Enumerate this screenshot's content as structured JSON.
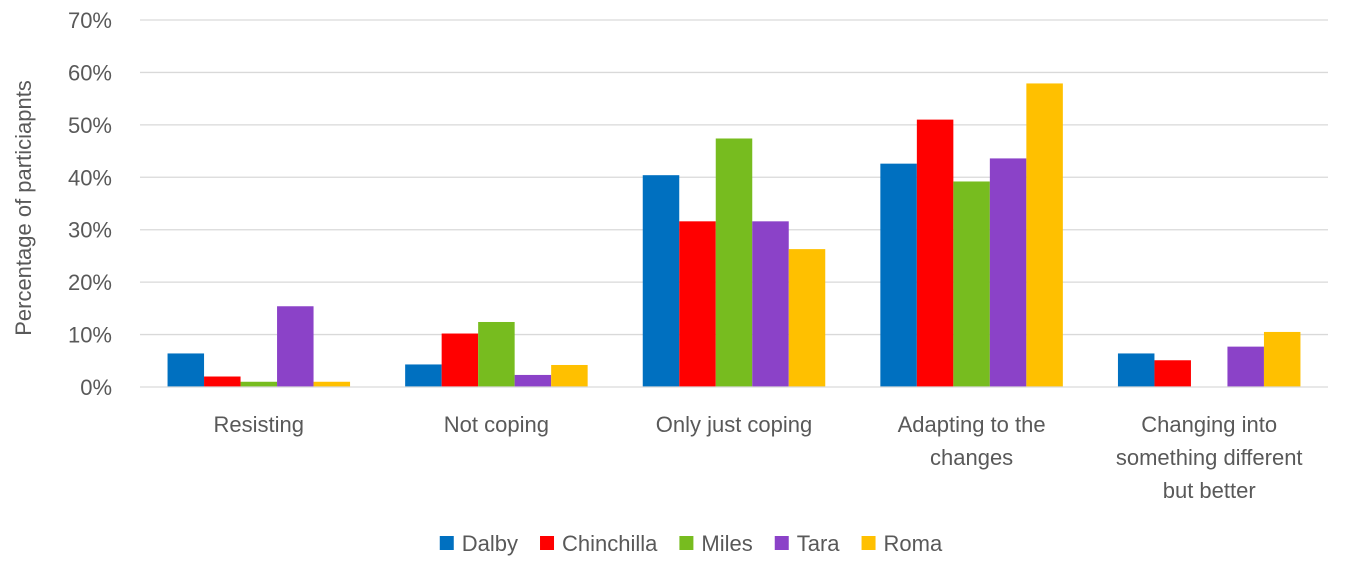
{
  "chart_data": {
    "type": "bar",
    "title": "",
    "xlabel": "",
    "ylabel": "Percentage of particiapnts",
    "ylim": [
      0,
      70
    ],
    "yticks": [
      0,
      10,
      20,
      30,
      40,
      50,
      60,
      70
    ],
    "ytick_labels": [
      "0%",
      "10%",
      "20%",
      "30%",
      "40%",
      "50%",
      "60%",
      "70%"
    ],
    "grid": true,
    "legend_position": "bottom",
    "categories": [
      "Resisting",
      "Not coping",
      "Only just coping",
      "Adapting to the changes",
      "Changing into something different but better"
    ],
    "category_label_lines": [
      [
        "Resisting"
      ],
      [
        "Not coping"
      ],
      [
        "Only just coping"
      ],
      [
        "Adapting to the",
        "changes"
      ],
      [
        "Changing into",
        "something different",
        "but better"
      ]
    ],
    "series": [
      {
        "name": "Dalby",
        "color": "#0070C0",
        "values": [
          6.4,
          4.3,
          40.4,
          42.6,
          6.4
        ]
      },
      {
        "name": "Chinchilla",
        "color": "#FF0000",
        "values": [
          2.0,
          10.2,
          31.6,
          51.0,
          5.1
        ]
      },
      {
        "name": "Miles",
        "color": "#77BC1F",
        "values": [
          1.0,
          12.4,
          47.4,
          39.2,
          0
        ]
      },
      {
        "name": "Tara",
        "color": "#8B42C8",
        "values": [
          15.4,
          2.3,
          31.6,
          43.6,
          7.7
        ]
      },
      {
        "name": "Roma",
        "color": "#FFC000",
        "values": [
          1.0,
          4.2,
          26.3,
          57.9,
          10.5
        ]
      }
    ]
  }
}
